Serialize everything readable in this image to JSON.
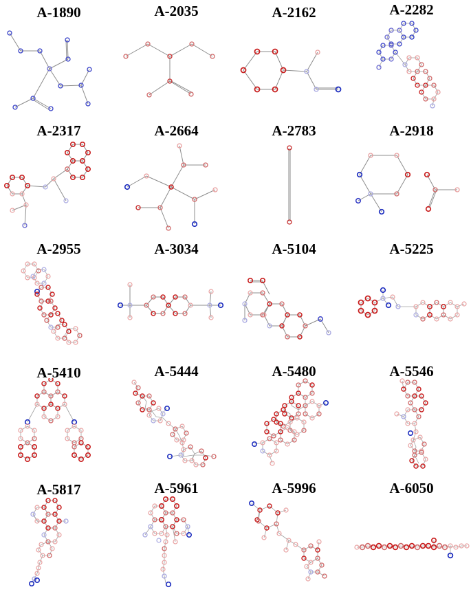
{
  "panels": [
    {
      "id": "A-1890"
    },
    {
      "id": "A-2035"
    },
    {
      "id": "A-2162"
    },
    {
      "id": "A-2282"
    },
    {
      "id": "A-2317"
    },
    {
      "id": "A-2664"
    },
    {
      "id": "A-2783"
    },
    {
      "id": "A-2918"
    },
    {
      "id": "A-2955"
    },
    {
      "id": "A-3034"
    },
    {
      "id": "A-5104"
    },
    {
      "id": "A-5225"
    },
    {
      "id": "A-5410"
    },
    {
      "id": "A-5444"
    },
    {
      "id": "A-5480"
    },
    {
      "id": "A-5546"
    },
    {
      "id": "A-5817"
    },
    {
      "id": "A-5961"
    },
    {
      "id": "A-5996"
    },
    {
      "id": "A-6050"
    }
  ],
  "colors": {
    "positive_strong": "#c81e1e",
    "positive_light": "#e8a0a0",
    "negative_strong": "#1f2fbf",
    "negative_light": "#a8a8e0",
    "bond": "#8c8c8c"
  }
}
